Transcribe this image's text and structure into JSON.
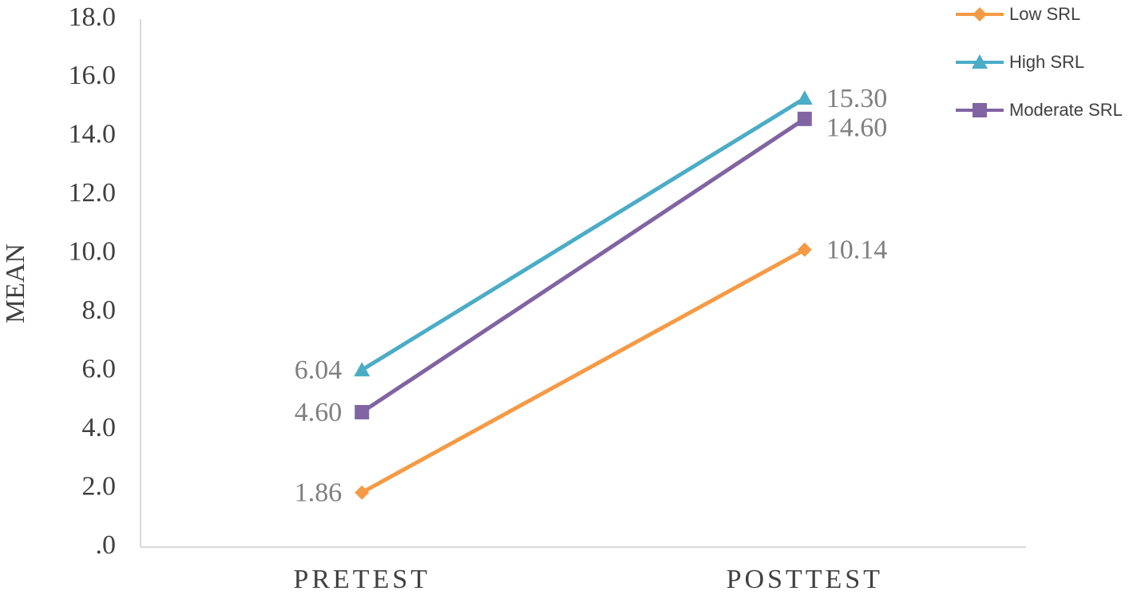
{
  "chart_data": {
    "type": "line",
    "categories": [
      "PRETEST",
      "POSTTEST"
    ],
    "y_label": "MEAN",
    "series": [
      {
        "name": "Low SRL",
        "color": "#f59a45",
        "marker": "diamond",
        "values": [
          1.86,
          10.14
        ],
        "value_labels": [
          "1.86",
          "10.14"
        ]
      },
      {
        "name": "High SRL",
        "color": "#4bacc6",
        "marker": "triangle",
        "values": [
          6.04,
          15.3
        ],
        "value_labels": [
          "6.04",
          "15.30"
        ]
      },
      {
        "name": "Moderate SRL",
        "color": "#8064a2",
        "marker": "square",
        "values": [
          4.6,
          14.6
        ],
        "value_labels": [
          "4.60",
          "14.60"
        ]
      }
    ],
    "ylim": [
      0,
      18
    ],
    "yticks": [
      {
        "value": 0,
        "label": ".0"
      },
      {
        "value": 2,
        "label": "2.0"
      },
      {
        "value": 4,
        "label": "4.0"
      },
      {
        "value": 6,
        "label": "6.0"
      },
      {
        "value": 8,
        "label": "8.0"
      },
      {
        "value": 10,
        "label": "10.0"
      },
      {
        "value": 12,
        "label": "12.0"
      },
      {
        "value": 14,
        "label": "14.0"
      },
      {
        "value": 16,
        "label": "16.0"
      },
      {
        "value": 18,
        "label": "18.0"
      }
    ],
    "grid": false,
    "legend": "top-right"
  }
}
